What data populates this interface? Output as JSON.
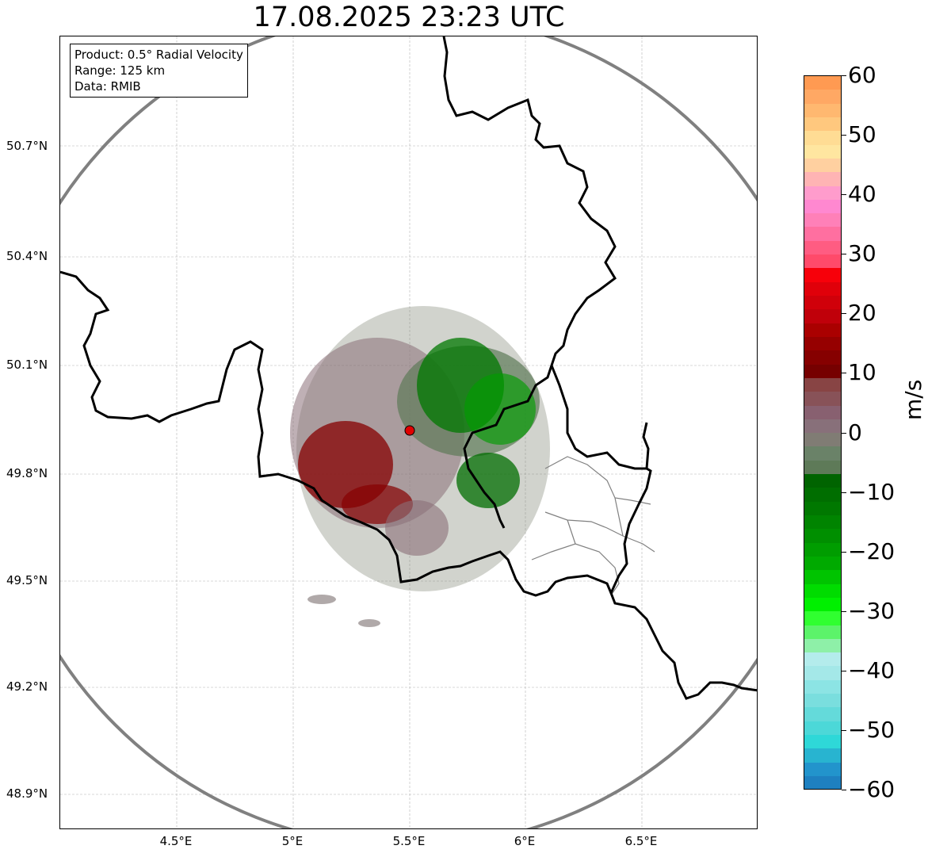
{
  "title": "17.08.2025 23:23 UTC",
  "info": {
    "product": "Product: 0.5° Radial Velocity",
    "range": "Range: 125 km",
    "source": "Data: RMIB"
  },
  "lat_labels": [
    "50.7°N",
    "50.4°N",
    "50.1°N",
    "49.8°N",
    "49.5°N",
    "49.2°N",
    "48.9°N"
  ],
  "lon_labels": [
    "4.5°E",
    "5°E",
    "5.5°E",
    "6°E",
    "6.5°E"
  ],
  "radar_site": "radar-site-marker",
  "colorbar": {
    "unit": "m/s",
    "tick_labels": [
      "60",
      "50",
      "40",
      "30",
      "20",
      "10",
      "0",
      "−10",
      "−20",
      "−30",
      "−40",
      "−50",
      "−60"
    ],
    "colors": [
      "#ff9a52",
      "#ffa864",
      "#ffb870",
      "#ffc87e",
      "#ffdc94",
      "#ffe6a0",
      "#ffd0a0",
      "#ffb4b4",
      "#ff9ccc",
      "#ff88d0",
      "#ff80b8",
      "#ff6fa0",
      "#ff5c82",
      "#ff4a6a",
      "#f7000a",
      "#e0000a",
      "#d0000a",
      "#c0000a",
      "#aa0000",
      "#960000",
      "#860000",
      "#760000",
      "#884444",
      "#885258",
      "#886070",
      "#88707a",
      "#807c74",
      "#6a8268",
      "#5e7a58",
      "#006400",
      "#006e00",
      "#007800",
      "#008400",
      "#008f00",
      "#009d00",
      "#00aa00",
      "#00c400",
      "#00dc00",
      "#00f000",
      "#30ff30",
      "#5cf36a",
      "#8ef0a8",
      "#b4ecec",
      "#a4e8e8",
      "#8ce4e4",
      "#7adede",
      "#64dada",
      "#4cd8d8",
      "#2ed8d8",
      "#28b4d0",
      "#2294cc",
      "#1e80c0"
    ]
  }
}
